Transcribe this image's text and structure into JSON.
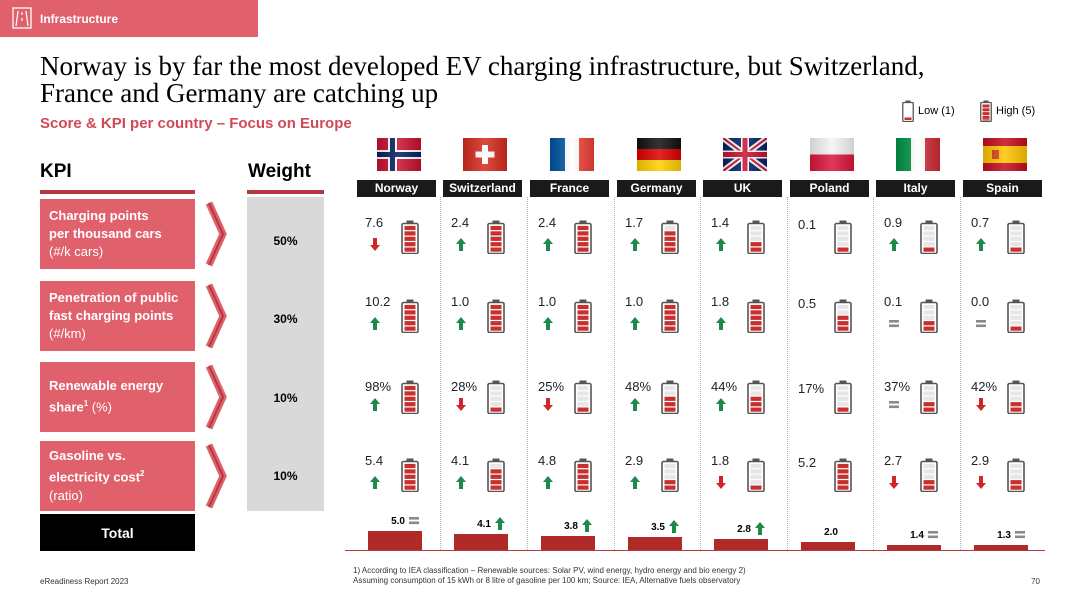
{
  "section_tab": "Infrastructure",
  "title_line1": "Norway is by far the most developed EV charging infrastructure, but Switzerland,",
  "title_line2": "France and Germany are catching up",
  "subtitle": "Score & KPI per country – Focus on Europe",
  "legend": {
    "low": "Low (1)",
    "high": "High (5)"
  },
  "headers": {
    "kpi": "KPI",
    "weight": "Weight"
  },
  "kpis": [
    {
      "line1": "Charging points",
      "line2": "per thousand cars",
      "line3": "(#/k cars)",
      "sup": "",
      "weight": "50%"
    },
    {
      "line1": "Penetration of public",
      "line2": "fast charging points",
      "line3": "(#/km)",
      "sup": "",
      "weight": "30%"
    },
    {
      "line1": "Renewable energy",
      "line2": "share",
      "line3": " (%)",
      "sup": "1",
      "weight": "10%"
    },
    {
      "line1": "Gasoline vs.",
      "line2": "electricity cost",
      "line3": "(ratio)",
      "sup": "2",
      "weight": "10%"
    }
  ],
  "countries": [
    "Norway",
    "Switzerland",
    "France",
    "Germany",
    "UK",
    "Poland",
    "Italy",
    "Spain"
  ],
  "flags": [
    "norway-flag",
    "switzerland-flag",
    "france-flag",
    "germany-flag",
    "uk-flag",
    "poland-flag",
    "italy-flag",
    "spain-flag"
  ],
  "cells": [
    [
      {
        "v": "7.6",
        "t": "down",
        "s": 5
      },
      {
        "v": "2.4",
        "t": "up",
        "s": 5
      },
      {
        "v": "2.4",
        "t": "up",
        "s": 5
      },
      {
        "v": "1.7",
        "t": "up",
        "s": 4
      },
      {
        "v": "1.4",
        "t": "up",
        "s": 2
      },
      {
        "v": "0.1",
        "t": "none",
        "s": 1
      },
      {
        "v": "0.9",
        "t": "up",
        "s": 1
      },
      {
        "v": "0.7",
        "t": "up",
        "s": 1
      }
    ],
    [
      {
        "v": "10.2",
        "t": "up",
        "s": 5
      },
      {
        "v": "1.0",
        "t": "up",
        "s": 5
      },
      {
        "v": "1.0",
        "t": "up",
        "s": 5
      },
      {
        "v": "1.0",
        "t": "up",
        "s": 5
      },
      {
        "v": "1.8",
        "t": "up",
        "s": 5
      },
      {
        "v": "0.5",
        "t": "none",
        "s": 3
      },
      {
        "v": "0.1",
        "t": "same",
        "s": 2
      },
      {
        "v": "0.0",
        "t": "same",
        "s": 1
      }
    ],
    [
      {
        "v": "98%",
        "t": "up",
        "s": 5
      },
      {
        "v": "28%",
        "t": "down",
        "s": 1
      },
      {
        "v": "25%",
        "t": "down",
        "s": 1
      },
      {
        "v": "48%",
        "t": "up",
        "s": 3
      },
      {
        "v": "44%",
        "t": "up",
        "s": 3
      },
      {
        "v": "17%",
        "t": "none",
        "s": 1
      },
      {
        "v": "37%",
        "t": "same",
        "s": 2
      },
      {
        "v": "42%",
        "t": "down",
        "s": 2
      }
    ],
    [
      {
        "v": "5.4",
        "t": "up",
        "s": 5
      },
      {
        "v": "4.1",
        "t": "up",
        "s": 4
      },
      {
        "v": "4.8",
        "t": "up",
        "s": 5
      },
      {
        "v": "2.9",
        "t": "up",
        "s": 2
      },
      {
        "v": "1.8",
        "t": "down",
        "s": 1
      },
      {
        "v": "5.2",
        "t": "none",
        "s": 5
      },
      {
        "v": "2.7",
        "t": "down",
        "s": 2
      },
      {
        "v": "2.9",
        "t": "down",
        "s": 2
      }
    ]
  ],
  "total": {
    "label": "Total",
    "scale_max": 5.0,
    "items": [
      {
        "v": "5.0",
        "n": 5.0,
        "t": "same"
      },
      {
        "v": "4.1",
        "n": 4.1,
        "t": "up"
      },
      {
        "v": "3.8",
        "n": 3.8,
        "t": "up"
      },
      {
        "v": "3.5",
        "n": 3.5,
        "t": "up"
      },
      {
        "v": "2.8",
        "n": 2.8,
        "t": "up"
      },
      {
        "v": "2.0",
        "n": 2.0,
        "t": "none"
      },
      {
        "v": "1.4",
        "n": 1.4,
        "t": "same"
      },
      {
        "v": "1.3",
        "n": 1.3,
        "t": "same"
      }
    ]
  },
  "colors": {
    "accent": "#e0616b",
    "subtitle": "#d04a55",
    "bar": "#b02a2a",
    "up": "#1e8a4a",
    "down": "#d0262b",
    "same": "#8a8a8a",
    "battery_fill": "#c83030"
  },
  "footer": {
    "left": "eReadiness Report 2023",
    "note_sup": "1)",
    "note1": " According to IEA classification – Renewable sources: Solar PV, wind energy, hydro energy and bio energy ",
    "note_sup2": "2)",
    "note2": "Assuming consumption of 15 kWh or 8 litre of gasoline per 100 km; Source: IEA, Alternative fuels observatory",
    "page": "70"
  }
}
